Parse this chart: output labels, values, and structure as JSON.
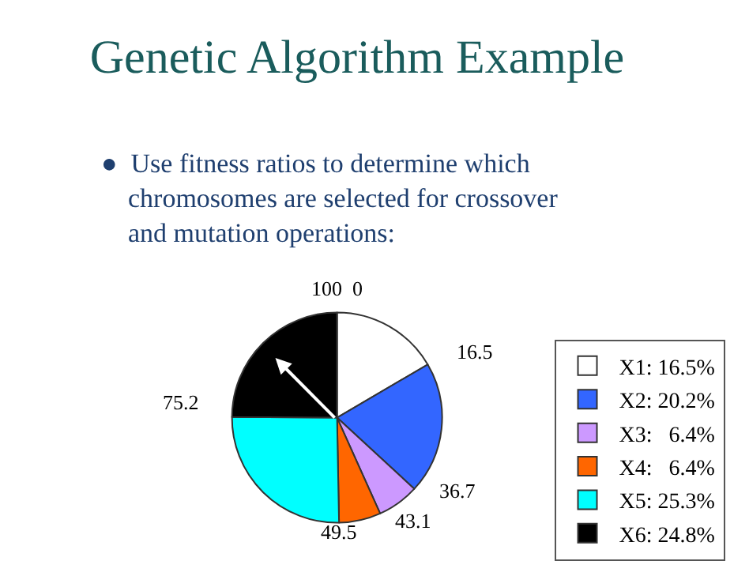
{
  "chart_data": {
    "type": "pie",
    "title": "Genetic Algorithm Example",
    "subtitle": "●  Use fitness ratios to determine which\nchromosomes are selected for crossover\nand mutation operations:",
    "categories": [
      "X1: 16.5%",
      "X2: 20.2%",
      "X3:   6.4%",
      "X4:   6.4%",
      "X5: 25.3%",
      "X6: 24.8%"
    ],
    "values": [
      16.5,
      20.2,
      6.4,
      6.4,
      25.3,
      24.8
    ],
    "colors": [
      "#ffffff",
      "#3366ff",
      "#cc99ff",
      "#ff6600",
      "#00ffff",
      "#000000"
    ],
    "annotations": [
      "100  0",
      "16.5",
      "36.7",
      "43.1",
      "49.5",
      "75.2"
    ],
    "needle": "X6: 24.8%",
    "legend": "right"
  }
}
